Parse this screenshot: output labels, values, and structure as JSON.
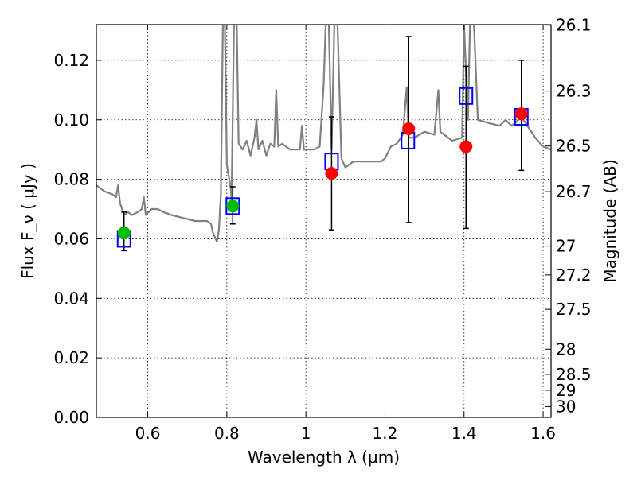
{
  "chart_data": {
    "type": "scatter",
    "xlabel": "Wavelength  λ (μm)",
    "ylabel": "Flux  F_ν  ( μJy )",
    "ylabel_right": "Magnitude (AB)",
    "xlim": [
      0.47,
      1.62
    ],
    "ylim": [
      0.0,
      0.132
    ],
    "grid": true,
    "legend": "none",
    "x_ticks": [
      0.6,
      0.8,
      1.0,
      1.2,
      1.4,
      1.6
    ],
    "x_tick_labels": [
      "0.6",
      "0.8",
      "1",
      "1.2",
      "1.4",
      "1.6"
    ],
    "y_ticks": [
      0.0,
      0.02,
      0.04,
      0.06,
      0.08,
      0.1,
      0.12
    ],
    "y_tick_labels": [
      "0.00",
      "0.02",
      "0.04",
      "0.06",
      "0.08",
      "0.10",
      "0.12"
    ],
    "right_ticks": [
      {
        "mag": 26.1,
        "label": "26.1"
      },
      {
        "mag": 26.3,
        "label": "26.3"
      },
      {
        "mag": 26.5,
        "label": "26.5"
      },
      {
        "mag": 26.7,
        "label": "26.7"
      },
      {
        "mag": 27.0,
        "label": "27"
      },
      {
        "mag": 27.2,
        "label": "27.2"
      },
      {
        "mag": 27.5,
        "label": "27.5"
      },
      {
        "mag": 28.0,
        "label": "28"
      },
      {
        "mag": 28.5,
        "label": "28.5"
      },
      {
        "mag": 29.0,
        "label": "29"
      },
      {
        "mag": 30.0,
        "label": "30"
      }
    ],
    "series": [
      {
        "kind": "model-spectrum",
        "color": "#808080",
        "points": [
          [
            0.47,
            0.078
          ],
          [
            0.49,
            0.076
          ],
          [
            0.51,
            0.075
          ],
          [
            0.52,
            0.074
          ],
          [
            0.525,
            0.078
          ],
          [
            0.53,
            0.072
          ],
          [
            0.54,
            0.068
          ],
          [
            0.55,
            0.069
          ],
          [
            0.56,
            0.068
          ],
          [
            0.575,
            0.069
          ],
          [
            0.585,
            0.07
          ],
          [
            0.59,
            0.074
          ],
          [
            0.595,
            0.068
          ],
          [
            0.61,
            0.07
          ],
          [
            0.625,
            0.07
          ],
          [
            0.64,
            0.069
          ],
          [
            0.66,
            0.068
          ],
          [
            0.69,
            0.067
          ],
          [
            0.72,
            0.066
          ],
          [
            0.75,
            0.066
          ],
          [
            0.76,
            0.065
          ],
          [
            0.765,
            0.062
          ],
          [
            0.775,
            0.059
          ],
          [
            0.78,
            0.063
          ],
          [
            0.785,
            0.075
          ],
          [
            0.79,
            0.132
          ],
          [
            0.795,
            0.132
          ],
          [
            0.8,
            0.085
          ],
          [
            0.81,
            0.077
          ],
          [
            0.812,
            0.073
          ],
          [
            0.818,
            0.132
          ],
          [
            0.825,
            0.132
          ],
          [
            0.83,
            0.092
          ],
          [
            0.84,
            0.09
          ],
          [
            0.85,
            0.093
          ],
          [
            0.86,
            0.088
          ],
          [
            0.87,
            0.094
          ],
          [
            0.875,
            0.1
          ],
          [
            0.88,
            0.09
          ],
          [
            0.89,
            0.093
          ],
          [
            0.9,
            0.088
          ],
          [
            0.91,
            0.092
          ],
          [
            0.92,
            0.091
          ],
          [
            0.925,
            0.11
          ],
          [
            0.93,
            0.091
          ],
          [
            0.94,
            0.092
          ],
          [
            0.96,
            0.09
          ],
          [
            0.985,
            0.09
          ],
          [
            0.99,
            0.098
          ],
          [
            0.995,
            0.09
          ],
          [
            1.02,
            0.09
          ],
          [
            1.035,
            0.091
          ],
          [
            1.045,
            0.112
          ],
          [
            1.05,
            0.132
          ],
          [
            1.058,
            0.132
          ],
          [
            1.065,
            0.09
          ],
          [
            1.072,
            0.132
          ],
          [
            1.08,
            0.132
          ],
          [
            1.09,
            0.087
          ],
          [
            1.1,
            0.084
          ],
          [
            1.12,
            0.086
          ],
          [
            1.16,
            0.086
          ],
          [
            1.19,
            0.086
          ],
          [
            1.2,
            0.087
          ],
          [
            1.215,
            0.091
          ],
          [
            1.23,
            0.092
          ],
          [
            1.245,
            0.095
          ],
          [
            1.255,
            0.111
          ],
          [
            1.26,
            0.094
          ],
          [
            1.275,
            0.094
          ],
          [
            1.3,
            0.096
          ],
          [
            1.325,
            0.095
          ],
          [
            1.335,
            0.11
          ],
          [
            1.34,
            0.096
          ],
          [
            1.37,
            0.093
          ],
          [
            1.395,
            0.094
          ],
          [
            1.4,
            0.132
          ],
          [
            1.41,
            0.1
          ],
          [
            1.415,
            0.132
          ],
          [
            1.425,
            0.132
          ],
          [
            1.435,
            0.1
          ],
          [
            1.46,
            0.099
          ],
          [
            1.49,
            0.098
          ],
          [
            1.505,
            0.1
          ],
          [
            1.52,
            0.098
          ],
          [
            1.53,
            0.099
          ],
          [
            1.545,
            0.101
          ],
          [
            1.56,
            0.098
          ],
          [
            1.58,
            0.094
          ],
          [
            1.6,
            0.091
          ],
          [
            1.62,
            0.09
          ]
        ]
      },
      {
        "kind": "model-bandpass",
        "marker": "open-square",
        "color": "#0000ff",
        "points": [
          {
            "x": 0.54,
            "y": 0.06
          },
          {
            "x": 0.815,
            "y": 0.071
          },
          {
            "x": 1.065,
            "y": 0.086
          },
          {
            "x": 1.258,
            "y": 0.093
          },
          {
            "x": 1.405,
            "y": 0.108
          },
          {
            "x": 1.545,
            "y": 0.101
          }
        ]
      },
      {
        "kind": "observed",
        "points": [
          {
            "x": 0.54,
            "y": 0.062,
            "yerr_low": 0.056,
            "yerr_high": 0.069,
            "color": "#00bb00"
          },
          {
            "x": 0.815,
            "y": 0.071,
            "yerr_low": 0.065,
            "yerr_high": 0.0775,
            "color": "#00bb00"
          },
          {
            "x": 1.065,
            "y": 0.082,
            "yerr_low": 0.063,
            "yerr_high": 0.101,
            "color": "#ff0000"
          },
          {
            "x": 1.26,
            "y": 0.097,
            "yerr_low": 0.0655,
            "yerr_high": 0.128,
            "color": "#ff0000"
          },
          {
            "x": 1.405,
            "y": 0.091,
            "yerr_low": 0.0635,
            "yerr_high": 0.118,
            "color": "#ff0000"
          },
          {
            "x": 1.545,
            "y": 0.102,
            "yerr_low": 0.083,
            "yerr_high": 0.12,
            "color": "#ff0000"
          }
        ]
      }
    ]
  }
}
